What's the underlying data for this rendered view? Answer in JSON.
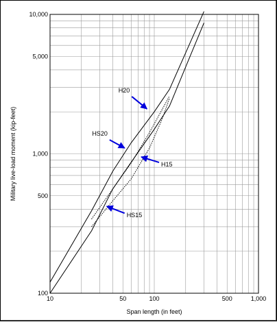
{
  "chart_data": {
    "type": "line",
    "xlabel": "Span length (in feet)",
    "ylabel": "Military live-load moment (kip-feet)",
    "x_scale": "log",
    "y_scale": "log",
    "xlim": [
      10,
      1000
    ],
    "ylim": [
      100,
      10000
    ],
    "x_tick_labels": [
      "10",
      "50",
      "100",
      "500",
      "1,000"
    ],
    "y_tick_labels": [
      "100",
      "500",
      "1,000",
      "5,000",
      "10,000"
    ],
    "grid": true,
    "series": [
      {
        "style": "solid",
        "points": [
          [
            10,
            120
          ],
          [
            25,
            390
          ],
          [
            40,
            750
          ],
          [
            60,
            1200
          ],
          [
            100,
            2000
          ],
          [
            140,
            2900
          ],
          [
            200,
            5300
          ],
          [
            300,
            10500
          ]
        ]
      },
      {
        "style": "solid",
        "points": [
          [
            10,
            100
          ],
          [
            25,
            280
          ],
          [
            40,
            560
          ],
          [
            60,
            870
          ],
          [
            100,
            1500
          ],
          [
            140,
            2200
          ],
          [
            200,
            4200
          ],
          [
            300,
            8700
          ]
        ]
      },
      {
        "style": "dotted",
        "points": [
          [
            25,
            300
          ],
          [
            40,
            460
          ],
          [
            60,
            660
          ],
          [
            90,
            1100
          ],
          [
            120,
            1800
          ],
          [
            140,
            2500
          ]
        ]
      },
      {
        "style": "dotted",
        "points": [
          [
            25,
            340
          ],
          [
            40,
            560
          ],
          [
            60,
            860
          ],
          [
            90,
            1420
          ],
          [
            120,
            2100
          ],
          [
            140,
            2600
          ]
        ]
      }
    ],
    "annotations": [
      {
        "text": "H20",
        "target": [
          85,
          2100
        ]
      },
      {
        "text": "HS20",
        "target": [
          52,
          1100
        ]
      },
      {
        "text": "H15",
        "target": [
          75,
          950
        ]
      },
      {
        "text": "HS15",
        "target": [
          35,
          420
        ]
      }
    ],
    "arrow_color": "#0000dd"
  }
}
